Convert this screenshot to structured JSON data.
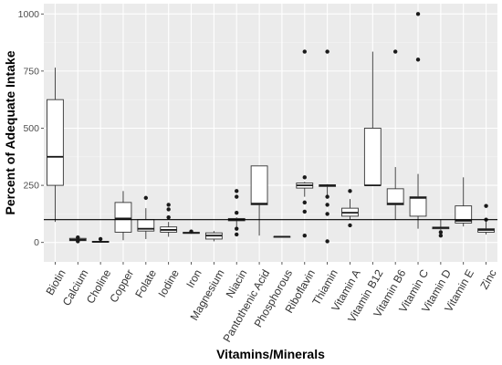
{
  "chart_data": {
    "type": "boxplot",
    "title": "",
    "xlabel": "Vitamins/Minerals",
    "ylabel": "Percent of Adequate Intake",
    "ylim": [
      -85,
      1045
    ],
    "yticks": [
      0,
      250,
      500,
      750,
      1000
    ],
    "ytick_labels": [
      "0",
      "250",
      "500",
      "750",
      "1000"
    ],
    "reference_line": 100,
    "grid": true,
    "legend": "none",
    "colors": {
      "panel_background": "#ebebeb",
      "grid_major": "#ffffff",
      "box_fill": "#ffffff",
      "box_stroke": "#333333",
      "point": "#1a1a1a",
      "reference_line": "#000000"
    },
    "categories": [
      "Biotin",
      "Calcium",
      "Choline",
      "Copper",
      "Folate",
      "Iodine",
      "Iron",
      "Magnesium",
      "Niacin",
      "Pantothenic Acid",
      "Phosphorous",
      "Riboflavin",
      "Thiamin",
      "Vitamin A",
      "Vitamin B12",
      "Vitamin B6",
      "Vitamin C",
      "Vitamin D",
      "Vitamin E",
      "Zinc"
    ],
    "boxes": [
      {
        "category": "Biotin",
        "min": 90,
        "q1": 250,
        "median": 375,
        "q3": 625,
        "max": 765,
        "outliers": []
      },
      {
        "category": "Calcium",
        "min": 5,
        "q1": 8,
        "median": 12,
        "q3": 18,
        "max": 25,
        "outliers": [
          22,
          10,
          5
        ]
      },
      {
        "category": "Choline",
        "min": 0,
        "q1": 1,
        "median": 3,
        "q3": 5,
        "max": 8,
        "outliers": [
          15
        ]
      },
      {
        "category": "Copper",
        "min": 10,
        "q1": 45,
        "median": 105,
        "q3": 175,
        "max": 225,
        "outliers": []
      },
      {
        "category": "Folate",
        "min": 15,
        "q1": 50,
        "median": 60,
        "q3": 100,
        "max": 150,
        "outliers": [
          195
        ]
      },
      {
        "category": "Iodine",
        "min": 25,
        "q1": 45,
        "median": 55,
        "q3": 68,
        "max": 90,
        "outliers": [
          165,
          145,
          110
        ]
      },
      {
        "category": "Iron",
        "min": 38,
        "q1": 40,
        "median": 42,
        "q3": 44,
        "max": 46,
        "outliers": [
          48
        ]
      },
      {
        "category": "Magnesium",
        "min": 5,
        "q1": 15,
        "median": 30,
        "q3": 42,
        "max": 50,
        "outliers": []
      },
      {
        "category": "Niacin",
        "min": 60,
        "q1": 95,
        "median": 100,
        "q3": 105,
        "max": 110,
        "outliers": [
          225,
          200,
          130,
          60,
          35
        ]
      },
      {
        "category": "Pantothenic Acid",
        "min": 30,
        "q1": 165,
        "median": 170,
        "q3": 335,
        "max": 335,
        "outliers": []
      },
      {
        "category": "Phosphorous",
        "min": 22,
        "q1": 24,
        "median": 25,
        "q3": 26,
        "max": 28,
        "outliers": []
      },
      {
        "category": "Riboflavin",
        "min": 200,
        "q1": 238,
        "median": 250,
        "q3": 260,
        "max": 265,
        "outliers": [
          835,
          285,
          175,
          135,
          30
        ]
      },
      {
        "category": "Thiamin",
        "min": 200,
        "q1": 245,
        "median": 250,
        "q3": 252,
        "max": 255,
        "outliers": [
          835,
          200,
          165,
          125,
          5
        ]
      },
      {
        "category": "Vitamin A",
        "min": 100,
        "q1": 115,
        "median": 130,
        "q3": 150,
        "max": 190,
        "outliers": [
          225,
          75
        ]
      },
      {
        "category": "Vitamin B12",
        "min": 250,
        "q1": 250,
        "median": 250,
        "q3": 500,
        "max": 835,
        "outliers": []
      },
      {
        "category": "Vitamin B6",
        "min": 100,
        "q1": 165,
        "median": 170,
        "q3": 235,
        "max": 330,
        "outliers": [
          835
        ]
      },
      {
        "category": "Vitamin C",
        "min": 60,
        "q1": 115,
        "median": 195,
        "q3": 200,
        "max": 300,
        "outliers": [
          1000,
          800
        ]
      },
      {
        "category": "Vitamin D",
        "min": 55,
        "q1": 60,
        "median": 65,
        "q3": 67,
        "max": 100,
        "outliers": [
          45,
          30
        ]
      },
      {
        "category": "Vitamin E",
        "min": 70,
        "q1": 85,
        "median": 95,
        "q3": 160,
        "max": 285,
        "outliers": []
      },
      {
        "category": "Zinc",
        "min": 35,
        "q1": 45,
        "median": 55,
        "q3": 60,
        "max": 100,
        "outliers": [
          160,
          100
        ]
      }
    ]
  }
}
